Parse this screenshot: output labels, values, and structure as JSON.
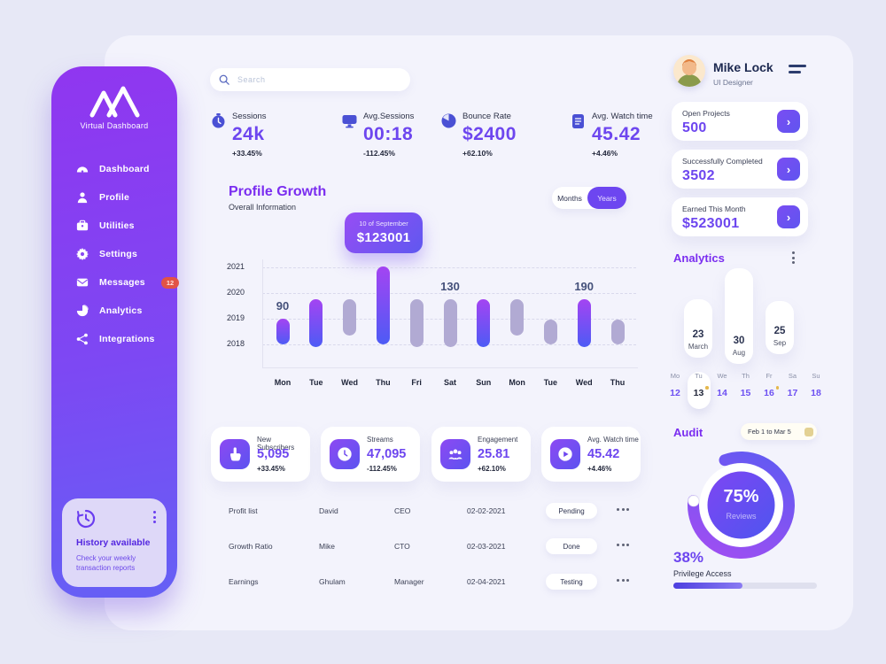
{
  "colors": {
    "accent": "#6d46ef",
    "sidebar_top": "#9036f0",
    "sidebar_bottom": "#6560f5",
    "bar_purple": "#7d4ff3",
    "bar_gray": "#b1aad3",
    "badge_red": "#e25345",
    "heading_purple": "#7a2df0"
  },
  "sidebar": {
    "brand": "Virtual Dashboard",
    "items": [
      {
        "label": "Dashboard",
        "icon": "gauge-icon"
      },
      {
        "label": "Profile",
        "icon": "user-icon"
      },
      {
        "label": "Utilities",
        "icon": "briefcase-icon"
      },
      {
        "label": "Settings",
        "icon": "gear-icon"
      },
      {
        "label": "Messages",
        "icon": "mail-icon",
        "badge": "12"
      },
      {
        "label": "Analytics",
        "icon": "pie-chart-icon"
      },
      {
        "label": "Integrations",
        "icon": "share-nodes-icon"
      }
    ],
    "history_card": {
      "title": "History available",
      "subtitle": "Check your weekly transaction reports",
      "icon": "history-clock-icon"
    }
  },
  "search": {
    "placeholder": "Search",
    "icon": "search-icon"
  },
  "stats": [
    {
      "label": "Sessions",
      "value": "24k",
      "delta": "+33.45%",
      "icon": "stopwatch-icon"
    },
    {
      "label": "Avg.Sessions",
      "value": "00:18",
      "delta": "-112.45%",
      "icon": "monitor-icon"
    },
    {
      "label": "Bounce Rate",
      "value": "$2400",
      "delta": "+62.10%",
      "icon": "clock-pie-icon"
    },
    {
      "label": "Avg. Watch time",
      "value": "45.42",
      "delta": "+4.46%",
      "icon": "notepad-icon"
    }
  ],
  "profile_growth": {
    "title": "Profile Growth",
    "subtitle": "Overall Information",
    "toggle_months": "Months",
    "toggle_years": "Years",
    "active": "Years"
  },
  "chart_data": {
    "type": "bar",
    "title": "Profile Growth",
    "x_categories": [
      "Mon",
      "Tue",
      "Wed",
      "Thu",
      "Fri",
      "Sat",
      "Sun",
      "Mon",
      "Tue",
      "Wed",
      "Thu"
    ],
    "y_ticks": [
      "2021",
      "2020",
      "2019",
      "2018"
    ],
    "y_range": [
      2018,
      2021
    ],
    "grid": "dashed-horizontal",
    "bars": [
      {
        "day": "Mon",
        "from": 2018.0,
        "to": 2019.0,
        "color": "purple",
        "label": "90"
      },
      {
        "day": "Tue",
        "from": 2017.9,
        "to": 2019.75,
        "color": "purple"
      },
      {
        "day": "Wed",
        "from": 2018.35,
        "to": 2019.75,
        "color": "gray"
      },
      {
        "day": "Thu",
        "from": 2018.0,
        "to": 2021.05,
        "color": "purple"
      },
      {
        "day": "Fri",
        "from": 2017.9,
        "to": 2019.75,
        "color": "gray"
      },
      {
        "day": "Sat",
        "from": 2017.9,
        "to": 2019.75,
        "color": "gray",
        "label": "130"
      },
      {
        "day": "Sun",
        "from": 2017.9,
        "to": 2019.75,
        "color": "purple"
      },
      {
        "day": "Mon",
        "from": 2018.35,
        "to": 2019.75,
        "color": "gray"
      },
      {
        "day": "Tue",
        "from": 2018.0,
        "to": 2018.95,
        "color": "gray"
      },
      {
        "day": "Wed",
        "from": 2017.9,
        "to": 2019.75,
        "color": "purple",
        "label": "190"
      },
      {
        "day": "Thu",
        "from": 2018.0,
        "to": 2018.95,
        "color": "gray"
      }
    ],
    "tooltip": {
      "date": "10 of September",
      "value": "$123001",
      "anchor_bar_index": 3
    }
  },
  "kpi_cards": [
    {
      "label": "New Subscribers",
      "value": "5,095",
      "delta": "+33.45%",
      "icon": "tap-icon"
    },
    {
      "label": "Streams",
      "value": "47,095",
      "delta": "-112.45%",
      "icon": "clock-icon"
    },
    {
      "label": "Engagement",
      "value": "25.81",
      "delta": "+62.10%",
      "icon": "team-icon"
    },
    {
      "label": "Avg. Watch time",
      "value": "45.42",
      "delta": "+4.46%",
      "icon": "play-icon"
    }
  ],
  "table": {
    "rows": [
      {
        "item": "Profit list",
        "name": "David",
        "role": "CEO",
        "date": "02-02-2021",
        "status": "Pending"
      },
      {
        "item": "Growth Ratio",
        "name": "Mike",
        "role": "CTO",
        "date": "02-03-2021",
        "status": "Done"
      },
      {
        "item": "Earnings",
        "name": "Ghulam",
        "role": "Manager",
        "date": "02-04-2021",
        "status": "Testing"
      }
    ]
  },
  "profile": {
    "name": "Mike Lock",
    "role": "UI Designer"
  },
  "summary_cards": [
    {
      "label": "Open Projects",
      "value": "500"
    },
    {
      "label": "Successfully Completed",
      "value": "3502"
    },
    {
      "label": "Earned This Month",
      "value": "$523001"
    }
  ],
  "analytics": {
    "title": "Analytics",
    "cards": [
      {
        "day": "23",
        "month": "March"
      },
      {
        "day": "30",
        "month": "Aug"
      },
      {
        "day": "25",
        "month": "Sep"
      }
    ]
  },
  "calendar": {
    "days": [
      "Mo",
      "Tu",
      "We",
      "Th",
      "Fr",
      "Sa",
      "Su"
    ],
    "dates": [
      "12",
      "13",
      "14",
      "15",
      "16",
      "17",
      "18"
    ],
    "selected": "13",
    "dot_dates": [
      "13",
      "16"
    ]
  },
  "audit": {
    "title": "Audit",
    "range": "Feb 1 to Mar 5",
    "donut": {
      "percent": "75%",
      "label": "Reviews",
      "arc_degrees": 295
    },
    "privilege": {
      "percent": "38%",
      "label": "Privilege Access"
    }
  }
}
